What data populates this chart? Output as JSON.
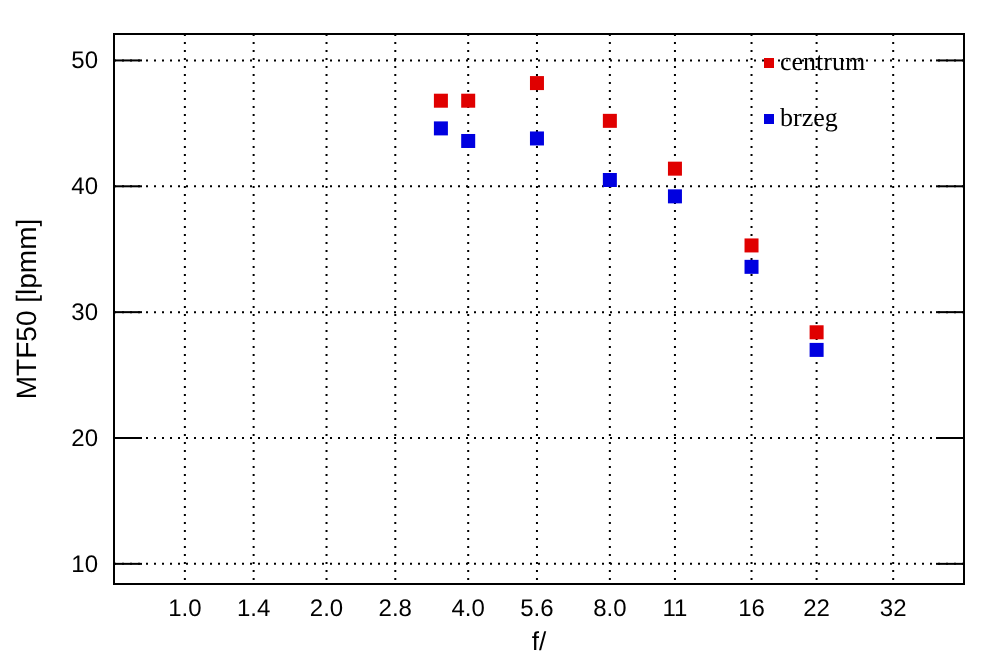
{
  "chart_data": {
    "type": "scatter",
    "xlabel": "f/",
    "ylabel": "MTF50 [lpmm]",
    "log": "x",
    "x": [
      3.5,
      4.0,
      5.6,
      8.0,
      11,
      16,
      22
    ],
    "series": [
      {
        "name": "centrum",
        "color": "#e00000",
        "values": [
          46.8,
          46.8,
          48.2,
          45.2,
          41.4,
          35.3,
          28.4
        ]
      },
      {
        "name": "brzeg",
        "color": "#0000e0",
        "values": [
          44.6,
          43.6,
          43.8,
          40.5,
          39.2,
          33.6,
          27.0
        ]
      }
    ],
    "xlim": [
      0.707,
      45.25
    ],
    "xticks": [
      {
        "value": 1,
        "label": "1.0"
      },
      1.4,
      {
        "value": 2,
        "label": "2.0"
      },
      2.8,
      {
        "value": 4,
        "label": "4.0"
      },
      5.6,
      {
        "value": 8,
        "label": "8.0"
      },
      11,
      16,
      22,
      32
    ],
    "ylim": [
      8.4,
      52.1
    ],
    "yticks": [
      10,
      20,
      30,
      40,
      50
    ],
    "grid": true,
    "legend": "top right",
    "marker": "square"
  }
}
